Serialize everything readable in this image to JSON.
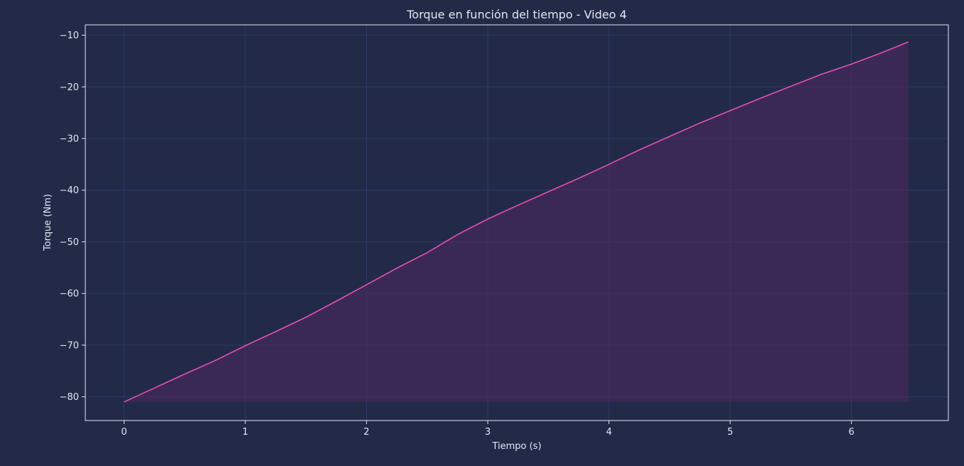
{
  "chart_data": {
    "type": "area",
    "title": "Torque en función del tiempo - Video 4",
    "xlabel": "Tiempo (s)",
    "ylabel": "Torque (Nm)",
    "xlim": [
      -0.32,
      6.8
    ],
    "ylim": [
      -84.6,
      -8.0
    ],
    "xticks": [
      0,
      1,
      2,
      3,
      4,
      5,
      6
    ],
    "yticks": [
      -80,
      -70,
      -60,
      -50,
      -40,
      -30,
      -20,
      -10
    ],
    "grid": true,
    "series": [
      {
        "color": "#e64fb6",
        "fill_color": "#4a2a5c",
        "fill_baseline": -81.0,
        "x": [
          0,
          0.25,
          0.5,
          0.75,
          1.0,
          1.25,
          1.5,
          1.75,
          2.0,
          2.25,
          2.5,
          2.75,
          3.0,
          3.25,
          3.5,
          3.75,
          4.0,
          4.25,
          4.5,
          4.75,
          5.0,
          5.25,
          5.5,
          5.75,
          6.0,
          6.25,
          6.47
        ],
        "y": [
          -81.0,
          -78.3,
          -75.6,
          -73.0,
          -70.1,
          -67.4,
          -64.6,
          -61.5,
          -58.3,
          -55.1,
          -52.1,
          -48.6,
          -45.6,
          -42.9,
          -40.3,
          -37.7,
          -35.0,
          -32.2,
          -29.6,
          -27.0,
          -24.6,
          -22.2,
          -19.9,
          -17.6,
          -15.6,
          -13.4,
          -11.3
        ]
      }
    ]
  },
  "colors": {
    "background": "#222a48",
    "plot_border": "#e6e6f0",
    "grid": "#2f3a66",
    "text": "#e6e6f0",
    "line": "#e64fb6",
    "fill": "#4a2a5c"
  }
}
